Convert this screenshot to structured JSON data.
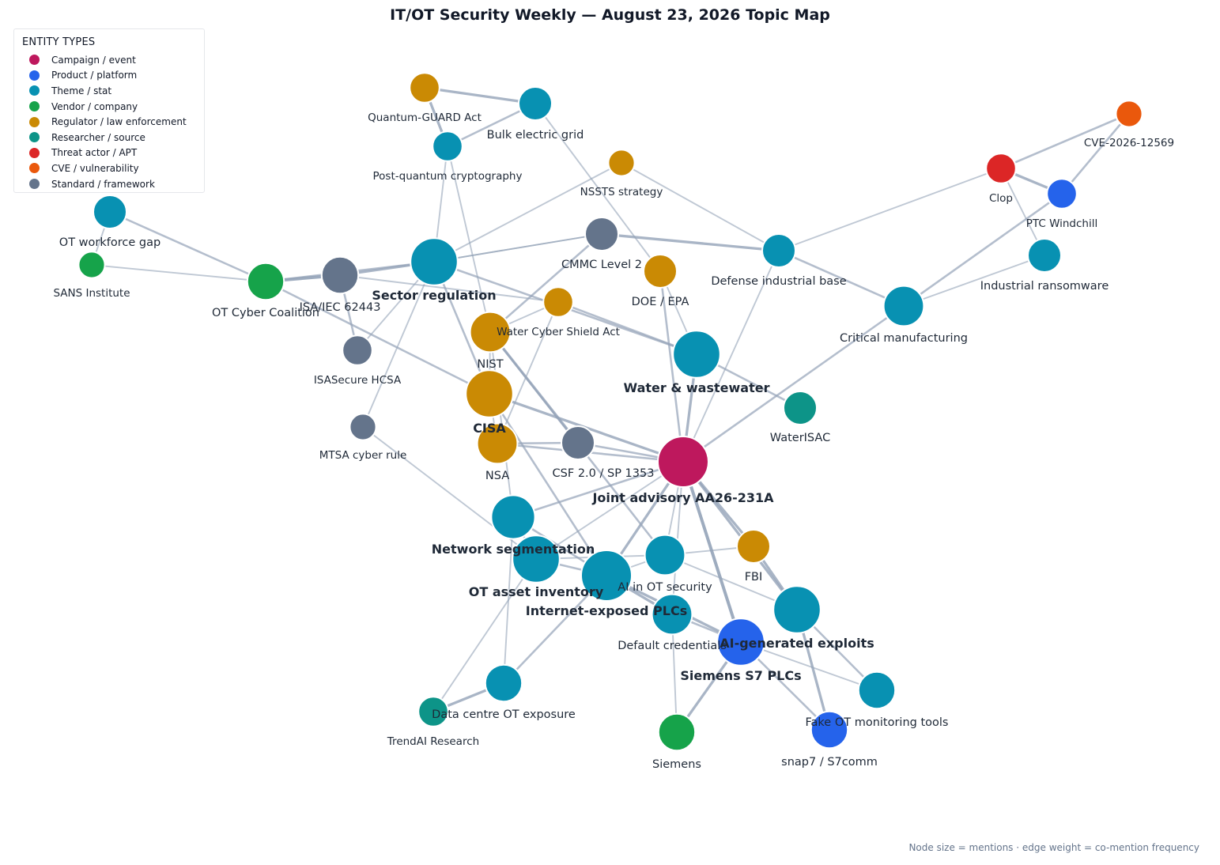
{
  "title": "IT/OT Security Weekly — August 23, 2026 Topic Map",
  "legend": {
    "title": "ENTITY TYPES",
    "items": [
      {
        "type": "campaign",
        "label": "Campaign / event",
        "color": "#be185d"
      },
      {
        "type": "product",
        "label": "Product / platform",
        "color": "#2563eb"
      },
      {
        "type": "theme",
        "label": "Theme / stat",
        "color": "#0891b2"
      },
      {
        "type": "vendor",
        "label": "Vendor / company",
        "color": "#16a34a"
      },
      {
        "type": "regulator",
        "label": "Regulator / law enforcement",
        "color": "#ca8a04"
      },
      {
        "type": "researcher",
        "label": "Researcher / source",
        "color": "#0d9488"
      },
      {
        "type": "threat",
        "label": "Threat actor / APT",
        "color": "#dc2626"
      },
      {
        "type": "cve",
        "label": "CVE / vulnerability",
        "color": "#ea580c"
      },
      {
        "type": "standard",
        "label": "Standard / framework",
        "color": "#64748b"
      }
    ]
  },
  "footnote": "Node size = mentions  ·  edge weight = co-mention frequency",
  "nodes": [
    {
      "id": "aa26",
      "label": "Joint advisory AA26-231A",
      "type": "campaign",
      "mentions": 10,
      "bold": true
    },
    {
      "id": "siemens_s7",
      "label": "Siemens S7 PLCs",
      "type": "product",
      "mentions": 9,
      "bold": true
    },
    {
      "id": "ai_exploits",
      "label": "AI-generated exploits",
      "type": "theme",
      "mentions": 9,
      "bold": true
    },
    {
      "id": "internet_plcs",
      "label": "Internet-exposed PLCs",
      "type": "theme",
      "mentions": 10,
      "bold": true
    },
    {
      "id": "ot_asset",
      "label": "OT asset inventory",
      "type": "theme",
      "mentions": 9,
      "bold": true
    },
    {
      "id": "net_seg",
      "label": "Network segmentation",
      "type": "theme",
      "mentions": 8,
      "bold": true
    },
    {
      "id": "cisa",
      "label": "CISA",
      "type": "regulator",
      "mentions": 9,
      "bold": true
    },
    {
      "id": "water",
      "label": "Water & wastewater",
      "type": "theme",
      "mentions": 9,
      "bold": true
    },
    {
      "id": "sector_reg",
      "label": "Sector regulation",
      "type": "theme",
      "mentions": 9,
      "bold": true
    },
    {
      "id": "nist",
      "label": "NIST",
      "type": "regulator",
      "mentions": 7,
      "bold": false
    },
    {
      "id": "nsa",
      "label": "NSA",
      "type": "regulator",
      "mentions": 7,
      "bold": false
    },
    {
      "id": "csf",
      "label": "CSF 2.0 / SP 1353",
      "type": "standard",
      "mentions": 5,
      "bold": false
    },
    {
      "id": "ai_ot",
      "label": "AI in OT security",
      "type": "theme",
      "mentions": 7,
      "bold": false
    },
    {
      "id": "default_cred",
      "label": "Default credentials",
      "type": "theme",
      "mentions": 7,
      "bold": false
    },
    {
      "id": "fbi",
      "label": "FBI",
      "type": "regulator",
      "mentions": 5,
      "bold": false
    },
    {
      "id": "fake_tools",
      "label": "Fake OT monitoring tools",
      "type": "theme",
      "mentions": 6,
      "bold": false
    },
    {
      "id": "snap7",
      "label": "snap7 / S7comm",
      "type": "product",
      "mentions": 6,
      "bold": false
    },
    {
      "id": "siemens",
      "label": "Siemens",
      "type": "vendor",
      "mentions": 6,
      "bold": false
    },
    {
      "id": "dc_exposure",
      "label": "Data centre OT exposure",
      "type": "theme",
      "mentions": 6,
      "bold": false
    },
    {
      "id": "trendai",
      "label": "TrendAI Research",
      "type": "researcher",
      "mentions": 4,
      "bold": false
    },
    {
      "id": "waterisac",
      "label": "WaterISAC",
      "type": "researcher",
      "mentions": 5,
      "bold": false
    },
    {
      "id": "doe_epa",
      "label": "DOE / EPA",
      "type": "regulator",
      "mentions": 5,
      "bold": false
    },
    {
      "id": "wcsa",
      "label": "Water Cyber Shield Act",
      "type": "regulator",
      "mentions": 4,
      "bold": false
    },
    {
      "id": "cmmc",
      "label": "CMMC Level 2",
      "type": "standard",
      "mentions": 5,
      "bold": false
    },
    {
      "id": "dib",
      "label": "Defense industrial base",
      "type": "theme",
      "mentions": 5,
      "bold": false
    },
    {
      "id": "crit_mfg",
      "label": "Critical manufacturing",
      "type": "theme",
      "mentions": 7,
      "bold": false
    },
    {
      "id": "ind_ransom",
      "label": "Industrial ransomware",
      "type": "theme",
      "mentions": 5,
      "bold": false
    },
    {
      "id": "ptc",
      "label": "PTC Windchill",
      "type": "product",
      "mentions": 4,
      "bold": false
    },
    {
      "id": "clop",
      "label": "Clop",
      "type": "threat",
      "mentions": 4,
      "bold": false
    },
    {
      "id": "cve",
      "label": "CVE-2026-12569",
      "type": "cve",
      "mentions": 3,
      "bold": false
    },
    {
      "id": "nssts",
      "label": "NSSTS strategy",
      "type": "regulator",
      "mentions": 3,
      "bold": false
    },
    {
      "id": "bulk_grid",
      "label": "Bulk electric grid",
      "type": "theme",
      "mentions": 5,
      "bold": false
    },
    {
      "id": "quantum",
      "label": "Quantum-GUARD Act",
      "type": "regulator",
      "mentions": 4,
      "bold": false
    },
    {
      "id": "pqc",
      "label": "Post-quantum cryptography",
      "type": "theme",
      "mentions": 4,
      "bold": false
    },
    {
      "id": "isa62443",
      "label": "ISA/IEC 62443",
      "type": "standard",
      "mentions": 6,
      "bold": false
    },
    {
      "id": "ot_coalition",
      "label": "OT Cyber Coalition",
      "type": "vendor",
      "mentions": 6,
      "bold": false
    },
    {
      "id": "sans",
      "label": "SANS Institute",
      "type": "vendor",
      "mentions": 3,
      "bold": false
    },
    {
      "id": "workforce",
      "label": "OT workforce gap",
      "type": "theme",
      "mentions": 5,
      "bold": false
    },
    {
      "id": "isasecure",
      "label": "ISASecure HCSA",
      "type": "standard",
      "mentions": 4,
      "bold": false
    },
    {
      "id": "mtsa",
      "label": "MTSA cyber rule",
      "type": "standard",
      "mentions": 3,
      "bold": false
    }
  ],
  "edges": [
    {
      "source": "aa26",
      "target": "siemens_s7",
      "weight": 4
    },
    {
      "source": "aa26",
      "target": "ai_exploits",
      "weight": 3
    },
    {
      "source": "aa26",
      "target": "fbi",
      "weight": 3
    },
    {
      "source": "aa26",
      "target": "csf",
      "weight": 2
    },
    {
      "source": "aa26",
      "target": "cisa",
      "weight": 3
    },
    {
      "source": "aa26",
      "target": "nsa",
      "weight": 2
    },
    {
      "source": "aa26",
      "target": "water",
      "weight": 3
    },
    {
      "source": "aa26",
      "target": "doe_epa",
      "weight": 2
    },
    {
      "source": "aa26",
      "target": "dib",
      "weight": 1
    },
    {
      "source": "aa26",
      "target": "crit_mfg",
      "weight": 2
    },
    {
      "source": "aa26",
      "target": "net_seg",
      "weight": 2
    },
    {
      "source": "aa26",
      "target": "ot_asset",
      "weight": 1
    },
    {
      "source": "aa26",
      "target": "internet_plcs",
      "weight": 3
    },
    {
      "source": "aa26",
      "target": "ai_ot",
      "weight": 1
    },
    {
      "source": "aa26",
      "target": "default_cred",
      "weight": 1
    },
    {
      "source": "siemens_s7",
      "target": "siemens",
      "weight": 3
    },
    {
      "source": "siemens_s7",
      "target": "snap7",
      "weight": 2
    },
    {
      "source": "siemens_s7",
      "target": "fake_tools",
      "weight": 1
    },
    {
      "source": "siemens_s7",
      "target": "internet_plcs",
      "weight": 3
    },
    {
      "source": "siemens_s7",
      "target": "default_cred",
      "weight": 2
    },
    {
      "source": "ai_exploits",
      "target": "fbi",
      "weight": 3
    },
    {
      "source": "ai_exploits",
      "target": "snap7",
      "weight": 3
    },
    {
      "source": "ai_exploits",
      "target": "fake_tools",
      "weight": 2
    },
    {
      "source": "ai_exploits",
      "target": "ai_ot",
      "weight": 1
    },
    {
      "source": "internet_plcs",
      "target": "ot_asset",
      "weight": 2
    },
    {
      "source": "internet_plcs",
      "target": "net_seg",
      "weight": 2
    },
    {
      "source": "internet_plcs",
      "target": "ai_ot",
      "weight": 1
    },
    {
      "source": "internet_plcs",
      "target": "default_cred",
      "weight": 3
    },
    {
      "source": "internet_plcs",
      "target": "dc_exposure",
      "weight": 2
    },
    {
      "source": "internet_plcs",
      "target": "cisa",
      "weight": 2
    },
    {
      "source": "ot_asset",
      "target": "net_seg",
      "weight": 2
    },
    {
      "source": "ot_asset",
      "target": "ai_ot",
      "weight": 1
    },
    {
      "source": "ot_asset",
      "target": "trendai",
      "weight": 1
    },
    {
      "source": "ot_asset",
      "target": "mtsa",
      "weight": 1
    },
    {
      "source": "net_seg",
      "target": "dc_exposure",
      "weight": 1
    },
    {
      "source": "net_seg",
      "target": "nist",
      "weight": 1
    },
    {
      "source": "ai_ot",
      "target": "fbi",
      "weight": 1
    },
    {
      "source": "ai_ot",
      "target": "nist",
      "weight": 2
    },
    {
      "source": "default_cred",
      "target": "siemens",
      "weight": 1
    },
    {
      "source": "dc_exposure",
      "target": "trendai",
      "weight": 3
    },
    {
      "source": "water",
      "target": "waterisac",
      "weight": 2
    },
    {
      "source": "water",
      "target": "wcsa",
      "weight": 2
    },
    {
      "source": "water",
      "target": "doe_epa",
      "weight": 1
    },
    {
      "source": "water",
      "target": "sector_reg",
      "weight": 2
    },
    {
      "source": "wcsa",
      "target": "nist",
      "weight": 1
    },
    {
      "source": "cmmc",
      "target": "dib",
      "weight": 3
    },
    {
      "source": "cmmc",
      "target": "nist",
      "weight": 2
    },
    {
      "source": "cmmc",
      "target": "sector_reg",
      "weight": 1
    },
    {
      "source": "doe_epa",
      "target": "bulk_grid",
      "weight": 1
    },
    {
      "source": "dib",
      "target": "crit_mfg",
      "weight": 2
    },
    {
      "source": "dib",
      "target": "clop",
      "weight": 1
    },
    {
      "source": "dib",
      "target": "nssts",
      "weight": 1
    },
    {
      "source": "crit_mfg",
      "target": "ind_ransom",
      "weight": 1
    },
    {
      "source": "crit_mfg",
      "target": "ptc",
      "weight": 2
    },
    {
      "source": "ind_ransom",
      "target": "clop",
      "weight": 1
    },
    {
      "source": "clop",
      "target": "ptc",
      "weight": 3
    },
    {
      "source": "clop",
      "target": "cve",
      "weight": 2
    },
    {
      "source": "ptc",
      "target": "cve",
      "weight": 2
    },
    {
      "source": "sector_reg",
      "target": "isa62443",
      "weight": 3
    },
    {
      "source": "sector_reg",
      "target": "ot_coalition",
      "weight": 2
    },
    {
      "source": "sector_reg",
      "target": "pqc",
      "weight": 1
    },
    {
      "source": "sector_reg",
      "target": "nssts",
      "weight": 1
    },
    {
      "source": "sector_reg",
      "target": "cmmc",
      "weight": 1
    },
    {
      "source": "sector_reg",
      "target": "isasecure",
      "weight": 1
    },
    {
      "source": "sector_reg",
      "target": "mtsa",
      "weight": 1
    },
    {
      "source": "sector_reg",
      "target": "cisa",
      "weight": 2
    },
    {
      "source": "quantum",
      "target": "bulk_grid",
      "weight": 3
    },
    {
      "source": "quantum",
      "target": "pqc",
      "weight": 3
    },
    {
      "source": "pqc",
      "target": "bulk_grid",
      "weight": 2
    },
    {
      "source": "pqc",
      "target": "nist",
      "weight": 1
    },
    {
      "source": "isa62443",
      "target": "ot_coalition",
      "weight": 4
    },
    {
      "source": "isa62443",
      "target": "isasecure",
      "weight": 2
    },
    {
      "source": "isa62443",
      "target": "wcsa",
      "weight": 1
    },
    {
      "source": "ot_coalition",
      "target": "sans",
      "weight": 1
    },
    {
      "source": "ot_coalition",
      "target": "workforce",
      "weight": 2
    },
    {
      "source": "ot_coalition",
      "target": "cisa",
      "weight": 2
    },
    {
      "source": "sans",
      "target": "workforce",
      "weight": 1
    },
    {
      "source": "cisa",
      "target": "nist",
      "weight": 1
    },
    {
      "source": "cisa",
      "target": "nsa",
      "weight": 1
    },
    {
      "source": "nist",
      "target": "csf",
      "weight": 3
    },
    {
      "source": "nsa",
      "target": "csf",
      "weight": 2
    },
    {
      "source": "nsa",
      "target": "wcsa",
      "weight": 1
    }
  ]
}
